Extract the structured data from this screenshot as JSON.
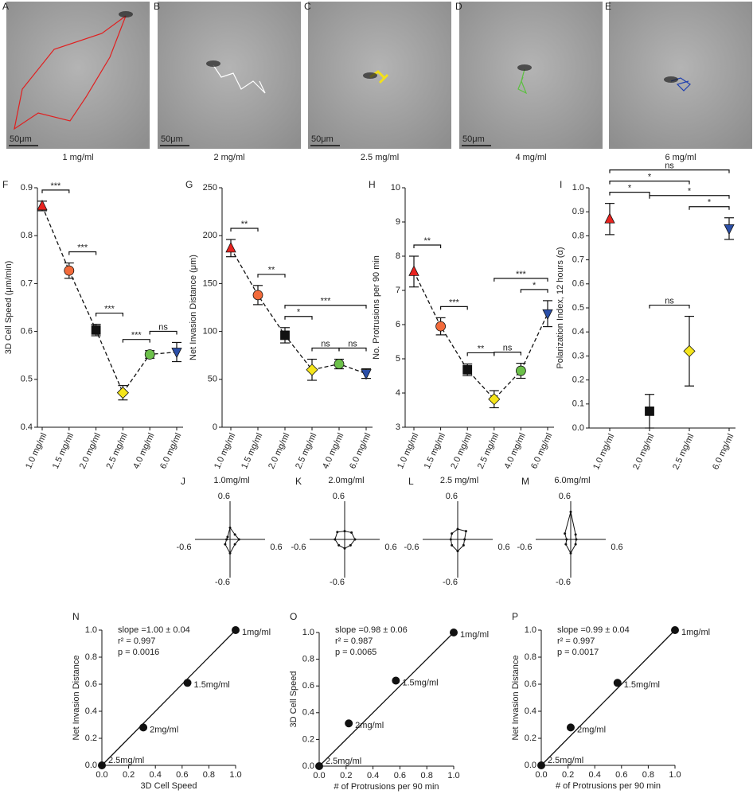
{
  "images": [
    {
      "panel": "A",
      "scale_bar": "50μm",
      "caption": "1 mg/ml",
      "color": "#e02020"
    },
    {
      "panel": "B",
      "scale_bar": "50μm",
      "caption": "2 mg/ml",
      "color": "#ffffff"
    },
    {
      "panel": "C",
      "scale_bar": "50μm",
      "caption": "2.5 mg/ml",
      "color": "#f2e01a"
    },
    {
      "panel": "D",
      "scale_bar": "50μm",
      "caption": "4 mg/ml",
      "color": "#5cc040"
    },
    {
      "panel": "E",
      "caption": "6 mg/ml",
      "color": "#2040b0"
    }
  ],
  "chart_data": [
    {
      "type": "line",
      "panel": "F",
      "ylabel": "3D Cell Speed (μm/min)",
      "categories": [
        "1.0 mg/ml",
        "1.5 mg/ml",
        "2.0 mg/ml",
        "2.5 mg/ml",
        "4.0 mg/ml",
        "6.0 mg/ml"
      ],
      "series": [
        {
          "values": [
            0.862,
            0.727,
            0.603,
            0.472,
            0.552,
            0.557
          ],
          "errors": [
            0.01,
            0.016,
            0.012,
            0.015,
            0.008,
            0.02
          ],
          "colors": [
            "#e8231f",
            "#f26a3a",
            "#111111",
            "#f5e51b",
            "#6cc04a",
            "#2b4fa8"
          ],
          "markers": [
            "triangle-up",
            "circle",
            "square",
            "diamond",
            "circle",
            "triangle-down"
          ]
        }
      ],
      "ylim": [
        0.4,
        0.9
      ],
      "yticks": [
        0.4,
        0.5,
        0.6,
        0.7,
        0.8,
        0.9
      ],
      "significance": [
        {
          "between": [
            0,
            1
          ],
          "label": "***"
        },
        {
          "between": [
            1,
            2
          ],
          "label": "***"
        },
        {
          "between": [
            2,
            3
          ],
          "label": "***"
        },
        {
          "between": [
            3,
            4
          ],
          "label": "***"
        },
        {
          "between": [
            4,
            5
          ],
          "label": "ns"
        }
      ]
    },
    {
      "type": "line",
      "panel": "G",
      "ylabel": "Net Invasion Distance (μm)",
      "categories": [
        "1.0 mg/ml",
        "1.5 mg/ml",
        "2.0 mg/ml",
        "2.5 mg/ml",
        "4.0 mg/ml",
        "6.0 mg/ml"
      ],
      "series": [
        {
          "values": [
            187,
            138,
            96,
            60,
            66,
            56
          ],
          "errors": [
            9,
            10,
            8,
            11,
            5,
            5
          ],
          "colors": [
            "#e8231f",
            "#f26a3a",
            "#111111",
            "#f5e51b",
            "#6cc04a",
            "#2b4fa8"
          ],
          "markers": [
            "triangle-up",
            "circle",
            "square",
            "diamond",
            "circle",
            "triangle-down"
          ]
        }
      ],
      "ylim": [
        0,
        250
      ],
      "yticks": [
        0,
        50,
        100,
        150,
        200,
        250
      ],
      "significance": [
        {
          "between": [
            0,
            1
          ],
          "label": "**"
        },
        {
          "between": [
            1,
            2
          ],
          "label": "**"
        },
        {
          "between": [
            2,
            3
          ],
          "label": "*"
        },
        {
          "between": [
            3,
            4
          ],
          "label": "ns"
        },
        {
          "between": [
            4,
            5
          ],
          "label": "ns"
        },
        {
          "between": [
            2,
            5
          ],
          "label": "***"
        }
      ]
    },
    {
      "type": "line",
      "panel": "H",
      "ylabel": "No. Protrusions per 90 min",
      "categories": [
        "1.0 mg/ml",
        "1.5 mg/ml",
        "2.0 mg/ml",
        "2.5 mg/ml",
        "4.0 mg/ml",
        "6.0 mg/ml"
      ],
      "series": [
        {
          "values": [
            7.55,
            5.95,
            4.68,
            3.82,
            4.65,
            6.32
          ],
          "errors": [
            0.45,
            0.25,
            0.17,
            0.25,
            0.22,
            0.38
          ],
          "colors": [
            "#e8231f",
            "#f26a3a",
            "#111111",
            "#f5e51b",
            "#6cc04a",
            "#2b4fa8"
          ],
          "markers": [
            "triangle-up",
            "circle",
            "square",
            "diamond",
            "circle",
            "triangle-down"
          ]
        }
      ],
      "ylim": [
        3,
        10
      ],
      "yticks": [
        3,
        4,
        5,
        6,
        7,
        8,
        9,
        10
      ],
      "significance": [
        {
          "between": [
            0,
            1
          ],
          "label": "**"
        },
        {
          "between": [
            1,
            2
          ],
          "label": "***"
        },
        {
          "between": [
            2,
            3
          ],
          "label": "**"
        },
        {
          "between": [
            3,
            4
          ],
          "label": "ns"
        },
        {
          "between": [
            4,
            5
          ],
          "label": "*"
        },
        {
          "between": [
            3,
            5
          ],
          "label": "***"
        }
      ]
    },
    {
      "type": "point",
      "panel": "I",
      "ylabel": "Polarization Index, 12 hours (α)",
      "categories": [
        "1.0 mg/ml",
        "2.0 mg/ml",
        "2.5 mg/ml",
        "6.0 mg/ml"
      ],
      "series": [
        {
          "values": [
            0.87,
            0.07,
            0.32,
            0.83
          ],
          "errors": [
            0.065,
            0.07,
            0.145,
            0.045
          ],
          "colors": [
            "#e8231f",
            "#111111",
            "#f5e51b",
            "#2b4fa8"
          ],
          "markers": [
            "triangle-up",
            "square",
            "diamond",
            "triangle-down"
          ]
        }
      ],
      "ylim": [
        0,
        1
      ],
      "yticks": [
        {
          "value": 0,
          "label": "0.0"
        },
        0.1,
        0.2,
        0.3,
        0.4,
        0.5,
        0.6,
        0.7,
        0.8,
        0.9,
        {
          "value": 1,
          "label": "1.0"
        }
      ],
      "significance": [
        {
          "between": [
            1,
            2
          ],
          "label": "ns"
        },
        {
          "between": [
            0,
            1
          ],
          "label": "*"
        },
        {
          "between": [
            2,
            3
          ],
          "label": "*"
        },
        {
          "between": [
            1,
            3
          ],
          "label": "*"
        },
        {
          "between": [
            0,
            2
          ],
          "label": "*"
        },
        {
          "between": [
            0,
            3
          ],
          "label": "ns"
        }
      ]
    },
    {
      "type": "radar",
      "panel": "J",
      "title": "1.0mg/ml",
      "theta": [
        0,
        45,
        90,
        135,
        180,
        225,
        270,
        315
      ],
      "values": [
        0.13,
        0.1,
        0.17,
        0.05,
        0.05,
        0.1,
        0.2,
        0.1
      ],
      "xlim": [
        -0.6,
        0.6
      ],
      "ylim": [
        -0.6,
        0.6
      ],
      "xticks": [
        -0.6,
        0.6
      ],
      "yticks": [
        -0.6,
        0.6
      ]
    },
    {
      "type": "radar",
      "panel": "K",
      "title": "2.0mg/ml",
      "theta": [
        0,
        45,
        90,
        135,
        180,
        225,
        270,
        315
      ],
      "values": [
        0.15,
        0.14,
        0.12,
        0.15,
        0.14,
        0.12,
        0.13,
        0.12
      ],
      "xlim": [
        -0.6,
        0.6
      ],
      "ylim": [
        -0.6,
        0.6
      ],
      "xticks": [
        -0.6,
        0.6
      ],
      "yticks": [
        -0.6,
        0.6
      ]
    },
    {
      "type": "radar",
      "panel": "L",
      "title": "2.5 mg/ml",
      "theta": [
        0,
        45,
        90,
        135,
        180,
        225,
        270,
        315
      ],
      "values": [
        0.1,
        0.17,
        0.15,
        0.12,
        0.1,
        0.12,
        0.17,
        0.12
      ],
      "xlim": [
        -0.6,
        0.6
      ],
      "ylim": [
        -0.6,
        0.6
      ],
      "xticks": [
        -0.6,
        0.6
      ],
      "yticks": [
        -0.6,
        0.6
      ]
    },
    {
      "type": "radar",
      "panel": "M",
      "title": "6.0mg/ml",
      "theta": [
        0,
        45,
        90,
        135,
        180,
        225,
        270,
        315
      ],
      "values": [
        0.08,
        0.1,
        0.4,
        0.12,
        0.06,
        0.1,
        0.2,
        0.1
      ],
      "xlim": [
        -0.6,
        0.6
      ],
      "ylim": [
        -0.6,
        0.6
      ],
      "xticks": [
        -0.6,
        0.6
      ],
      "yticks": [
        -0.6,
        0.6
      ]
    },
    {
      "type": "scatter",
      "panel": "N",
      "xlabel": "3D Cell  Speed",
      "ylabel": "Net Invasion Distance",
      "x": [
        0,
        0.31,
        0.64,
        1.0
      ],
      "values": [
        0,
        0.28,
        0.61,
        1.0
      ],
      "point_labels": [
        "2.5mg/ml",
        "2mg/ml",
        "1.5mg/ml",
        "1mg/ml"
      ],
      "fit": {
        "x": [
          0,
          1
        ],
        "values": [
          0,
          1
        ]
      },
      "stats": [
        "slope =1.00 ± 0.04",
        "r² = 0.997",
        "p = 0.0016"
      ],
      "xlim": [
        0,
        1
      ],
      "ylim": [
        0,
        1
      ],
      "xticks": [
        {
          "value": 0,
          "label": "0.0"
        },
        0.2,
        0.4,
        0.6,
        0.8,
        {
          "value": 1,
          "label": "1.0"
        }
      ],
      "yticks": [
        {
          "value": 0,
          "label": "0.0"
        },
        0.2,
        0.4,
        0.6,
        0.8,
        {
          "value": 1,
          "label": "1.0"
        }
      ]
    },
    {
      "type": "scatter",
      "panel": "O",
      "xlabel": "# of Protrusions per 90 min",
      "ylabel": "3D Cell Speed",
      "x": [
        0,
        0.22,
        0.57,
        1.0
      ],
      "values": [
        0,
        0.32,
        0.64,
        1.0
      ],
      "point_labels": [
        "2.5mg/ml",
        "2mg/ml",
        "1.5mg/ml",
        "1mg/ml"
      ],
      "fit": {
        "x": [
          0,
          1
        ],
        "values": [
          0,
          1
        ]
      },
      "stats": [
        "slope =0.98 ± 0.06",
        "r² = 0.987",
        "p = 0.0065"
      ],
      "xlim": [
        0,
        1
      ],
      "ylim": [
        0,
        1
      ],
      "xticks": [
        {
          "value": 0,
          "label": "0.0"
        },
        0.2,
        0.4,
        0.6,
        0.8,
        {
          "value": 1,
          "label": "1.0"
        }
      ],
      "yticks": [
        {
          "value": 0,
          "label": "0.0"
        },
        0.2,
        0.4,
        0.6,
        0.8,
        {
          "value": 1,
          "label": "1.0"
        }
      ]
    },
    {
      "type": "scatter",
      "panel": "P",
      "xlabel": "# of Protrusions per 90 min",
      "ylabel": "Net Invasion  Distance",
      "x": [
        0,
        0.22,
        0.57,
        1.0
      ],
      "values": [
        0,
        0.28,
        0.61,
        1.0
      ],
      "point_labels": [
        "2.5mg/ml",
        "2mg/ml",
        "1.5mg/ml",
        "1mg/ml"
      ],
      "fit": {
        "x": [
          0,
          1
        ],
        "values": [
          0,
          1
        ]
      },
      "stats": [
        "slope =0.99 ± 0.04",
        "r² = 0.997",
        "p = 0.0017"
      ],
      "xlim": [
        0,
        1
      ],
      "ylim": [
        0,
        1
      ],
      "xticks": [
        {
          "value": 0,
          "label": "0.0"
        },
        0.2,
        0.4,
        0.6,
        0.8,
        {
          "value": 1,
          "label": "1.0"
        }
      ],
      "yticks": [
        {
          "value": 0,
          "label": "0.0"
        },
        0.2,
        0.4,
        0.6,
        0.8,
        {
          "value": 1,
          "label": "1.0"
        }
      ]
    }
  ]
}
